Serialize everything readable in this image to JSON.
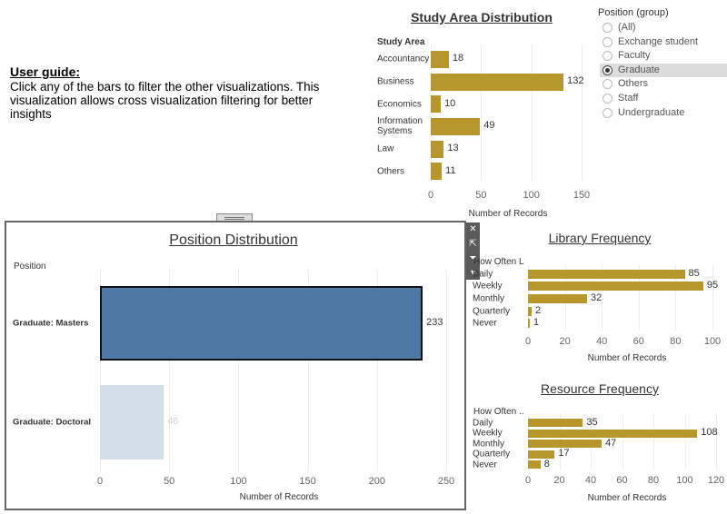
{
  "guide": {
    "title": "User guide:",
    "text": "Click any of the bars to filter the other visualizations. This visualization allows cross visualization filtering for better insights"
  },
  "colors": {
    "bar": "#b7962b",
    "selected_bar": "#4e79a7",
    "faded_bar": "#d3dde6"
  },
  "legend": {
    "title": "Position (group)",
    "items": [
      "(All)",
      "Exchange student",
      "Faculty",
      "Graduate",
      "Others",
      "Staff",
      "Undergraduate"
    ],
    "selected": "Graduate"
  },
  "toolbar": {
    "close_icon": "close-icon",
    "popout_icon": "external-link-icon",
    "filter_icon": "filter-icon",
    "menu_icon": "dropdown-arrow-icon"
  },
  "chart_data": [
    {
      "type": "bar",
      "title": "Study Area Distribution",
      "category_header": "Study Area",
      "categories": [
        "Accountancy",
        "Business",
        "Economics",
        "Information Systems",
        "Law",
        "Others"
      ],
      "values": [
        18,
        132,
        10,
        49,
        13,
        11
      ],
      "xlabel": "Number of Records",
      "xticks": [
        0,
        50,
        100,
        150
      ],
      "xlim": [
        0,
        150
      ]
    },
    {
      "type": "bar",
      "title": "Position Distribution",
      "category_header": "Position",
      "categories": [
        "Graduate: Masters",
        "Graduate: Doctoral"
      ],
      "values": [
        233,
        46
      ],
      "highlighted": "Graduate: Masters",
      "xlabel": "Number of Records",
      "xticks": [
        0,
        50,
        100,
        150,
        200,
        250
      ],
      "xlim": [
        0,
        250
      ]
    },
    {
      "type": "bar",
      "title": "Library Frequency",
      "category_header": "How Often L",
      "categories": [
        "Daily",
        "Weekly",
        "Monthly",
        "Quarterly",
        "Never"
      ],
      "values": [
        85,
        95,
        32,
        2,
        1
      ],
      "xlabel": "Number of Records",
      "xticks": [
        0,
        20,
        40,
        60,
        80,
        100
      ],
      "xlim": [
        0,
        100
      ]
    },
    {
      "type": "bar",
      "title": "Resource Frequency",
      "category_header": "How Often ..",
      "categories": [
        "Daily",
        "Weekly",
        "Monthly",
        "Quarterly",
        "Never"
      ],
      "values": [
        35,
        108,
        47,
        17,
        8
      ],
      "xlabel": "Number of Records",
      "xticks": [
        0,
        20,
        40,
        60,
        80,
        100,
        120
      ],
      "xlim": [
        0,
        120
      ]
    }
  ]
}
